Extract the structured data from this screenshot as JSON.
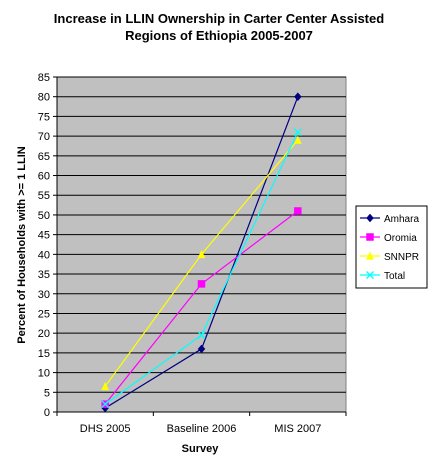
{
  "chart_data": {
    "type": "line",
    "title_lines": [
      "Increase in LLIN Ownership in Carter Center Assisted",
      "Regions of Ethiopia 2005-2007"
    ],
    "xlabel": "Survey",
    "ylabel": "Percent of Households with >= 1 LLIN",
    "categories": [
      "DHS 2005",
      "Baseline 2006",
      "MIS 2007"
    ],
    "ylim": [
      0,
      85
    ],
    "yticks": [
      0,
      5,
      10,
      15,
      20,
      25,
      30,
      35,
      40,
      45,
      50,
      55,
      60,
      65,
      70,
      75,
      80,
      85
    ],
    "grid": true,
    "plot_background": "#c0c0c0",
    "legend_position": "right",
    "series": [
      {
        "name": "Amhara",
        "color": "#000080",
        "marker": "diamond",
        "values": [
          1,
          16,
          80
        ]
      },
      {
        "name": "Oromia",
        "color": "#ff00ff",
        "marker": "square",
        "values": [
          2,
          32.5,
          51
        ]
      },
      {
        "name": "SNNPR",
        "color": "#ffff00",
        "marker": "triangle",
        "values": [
          6.5,
          40,
          69
        ]
      },
      {
        "name": "Total",
        "color": "#00ffff",
        "marker": "x",
        "values": [
          2,
          19.5,
          71
        ]
      }
    ]
  }
}
